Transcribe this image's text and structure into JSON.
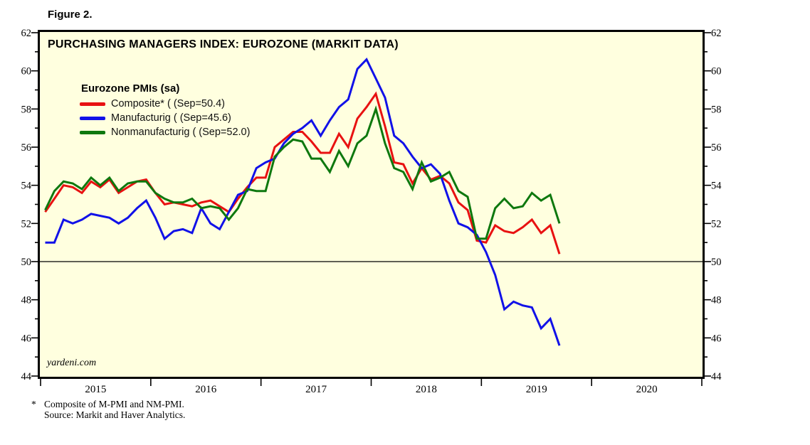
{
  "figure_label": "Figure 2.",
  "title": "PURCHASING MANAGERS INDEX: EUROZONE (MARKIT DATA)",
  "watermark": "yardeni.com",
  "legend": {
    "header": "Eurozone PMIs (sa)",
    "items": [
      {
        "label": "Composite* ( (Sep=50.4)"
      },
      {
        "label": "Manufacturig ( (Sep=45.6)"
      },
      {
        "label": "Nonmanufacturig ( (Sep=52.0)"
      }
    ]
  },
  "footnotes": {
    "marker": "*",
    "line1": "Composite of M-PMI and NM-PMI.",
    "line2": "Source: Markit and Haver Analytics."
  },
  "colors": {
    "plot_background": "#FFFFDF",
    "frame": "#000000",
    "composite": "#E81111",
    "manufacturing": "#1111E8",
    "nonmanufacturing": "#0E780E"
  },
  "chart_data": {
    "type": "line",
    "title": "PURCHASING MANAGERS INDEX: EUROZONE (MARKIT DATA)",
    "x_axis": {
      "frequency": "monthly",
      "start": "2015-01",
      "end": "2019-09",
      "domain_years": [
        2015,
        2021
      ],
      "tick_label_years": [
        "2015",
        "2016",
        "2017",
        "2018",
        "2019",
        "2020"
      ]
    },
    "y_axis": {
      "min": 44,
      "max": 62,
      "major_tick_step": 2,
      "minor_tick_step": 1,
      "ticks": [
        "44",
        "46",
        "48",
        "50",
        "52",
        "54",
        "56",
        "58",
        "60",
        "62"
      ]
    },
    "reference_line_y": 50,
    "legend_position": "top-left",
    "grid": false,
    "series": [
      {
        "name": "Composite",
        "color": "#E81111",
        "last_point": {
          "month": "Sep 2019",
          "value": 50.4
        },
        "values": [
          52.6,
          53.3,
          54.0,
          53.9,
          53.6,
          54.2,
          53.9,
          54.3,
          53.6,
          53.9,
          54.2,
          54.3,
          53.6,
          53.0,
          53.1,
          53.0,
          52.9,
          53.1,
          53.2,
          52.9,
          52.6,
          53.3,
          53.9,
          54.4,
          54.4,
          56.0,
          56.4,
          56.8,
          56.8,
          56.3,
          55.7,
          55.7,
          56.7,
          56.0,
          57.5,
          58.1,
          58.8,
          57.1,
          55.2,
          55.1,
          54.1,
          54.9,
          54.3,
          54.5,
          54.1,
          53.1,
          52.7,
          51.1,
          51.0,
          51.9,
          51.6,
          51.5,
          51.8,
          52.2,
          51.5,
          51.9,
          50.4
        ]
      },
      {
        "name": "Manufacturing",
        "color": "#1111E8",
        "last_point": {
          "month": "Sep 2019",
          "value": 45.6
        },
        "values": [
          51.0,
          51.0,
          52.2,
          52.0,
          52.2,
          52.5,
          52.4,
          52.3,
          52.0,
          52.3,
          52.8,
          53.2,
          52.3,
          51.2,
          51.6,
          51.7,
          51.5,
          52.8,
          52.0,
          51.7,
          52.6,
          53.5,
          53.7,
          54.9,
          55.2,
          55.4,
          56.2,
          56.7,
          57.0,
          57.4,
          56.6,
          57.4,
          58.1,
          58.5,
          60.1,
          60.6,
          59.6,
          58.6,
          56.6,
          56.2,
          55.5,
          54.9,
          55.1,
          54.6,
          53.2,
          52.0,
          51.8,
          51.4,
          50.5,
          49.3,
          47.5,
          47.9,
          47.7,
          47.6,
          46.5,
          47.0,
          45.6
        ]
      },
      {
        "name": "Nonmanufacturing",
        "color": "#0E780E",
        "last_point": {
          "month": "Sep 2019",
          "value": 52.0
        },
        "values": [
          52.7,
          53.7,
          54.2,
          54.1,
          53.8,
          54.4,
          54.0,
          54.4,
          53.7,
          54.1,
          54.2,
          54.2,
          53.6,
          53.3,
          53.1,
          53.1,
          53.3,
          52.8,
          52.9,
          52.8,
          52.2,
          52.8,
          53.8,
          53.7,
          53.7,
          55.5,
          56.0,
          56.4,
          56.3,
          55.4,
          55.4,
          54.7,
          55.8,
          55.0,
          56.2,
          56.6,
          58.0,
          56.2,
          54.9,
          54.7,
          53.8,
          55.2,
          54.2,
          54.4,
          54.7,
          53.7,
          53.4,
          51.2,
          51.2,
          52.8,
          53.3,
          52.8,
          52.9,
          53.6,
          53.2,
          53.5,
          52.0
        ]
      }
    ]
  }
}
